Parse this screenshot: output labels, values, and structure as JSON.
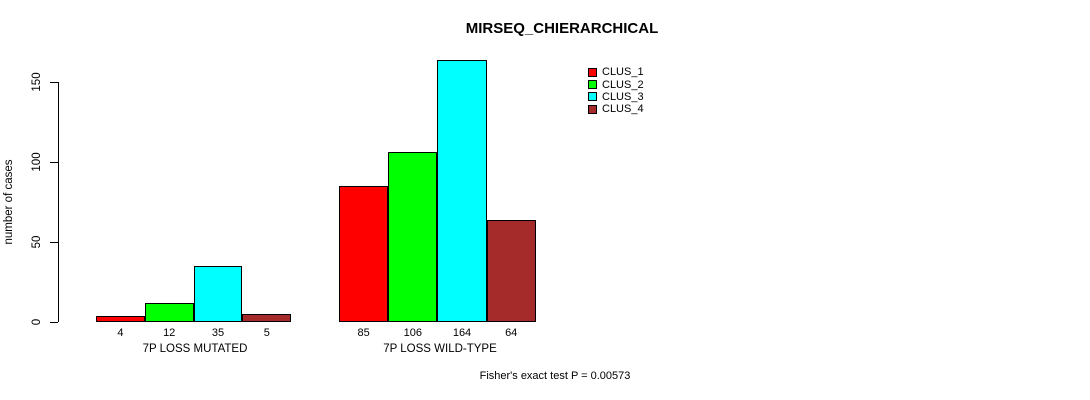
{
  "chart_data": {
    "type": "bar",
    "title": "MIRSEQ_CHIERARCHICAL",
    "ylabel": "number of cases",
    "xlabel": "",
    "ylim": [
      0,
      150
    ],
    "yticks": [
      0,
      50,
      100,
      150
    ],
    "grid": false,
    "legend_position": "top-right",
    "categories": [
      "7P LOSS MUTATED",
      "7P LOSS WILD-TYPE"
    ],
    "series": [
      {
        "name": "CLUS_1",
        "color": "#FF0000",
        "values": [
          4,
          85
        ]
      },
      {
        "name": "CLUS_2",
        "color": "#00FF00",
        "values": [
          12,
          106
        ]
      },
      {
        "name": "CLUS_3",
        "color": "#00FFFF",
        "values": [
          35,
          164
        ]
      },
      {
        "name": "CLUS_4",
        "color": "#A52A2A",
        "values": [
          5,
          64
        ]
      }
    ],
    "annotation": "Fisher's exact test P = 0.00573"
  }
}
